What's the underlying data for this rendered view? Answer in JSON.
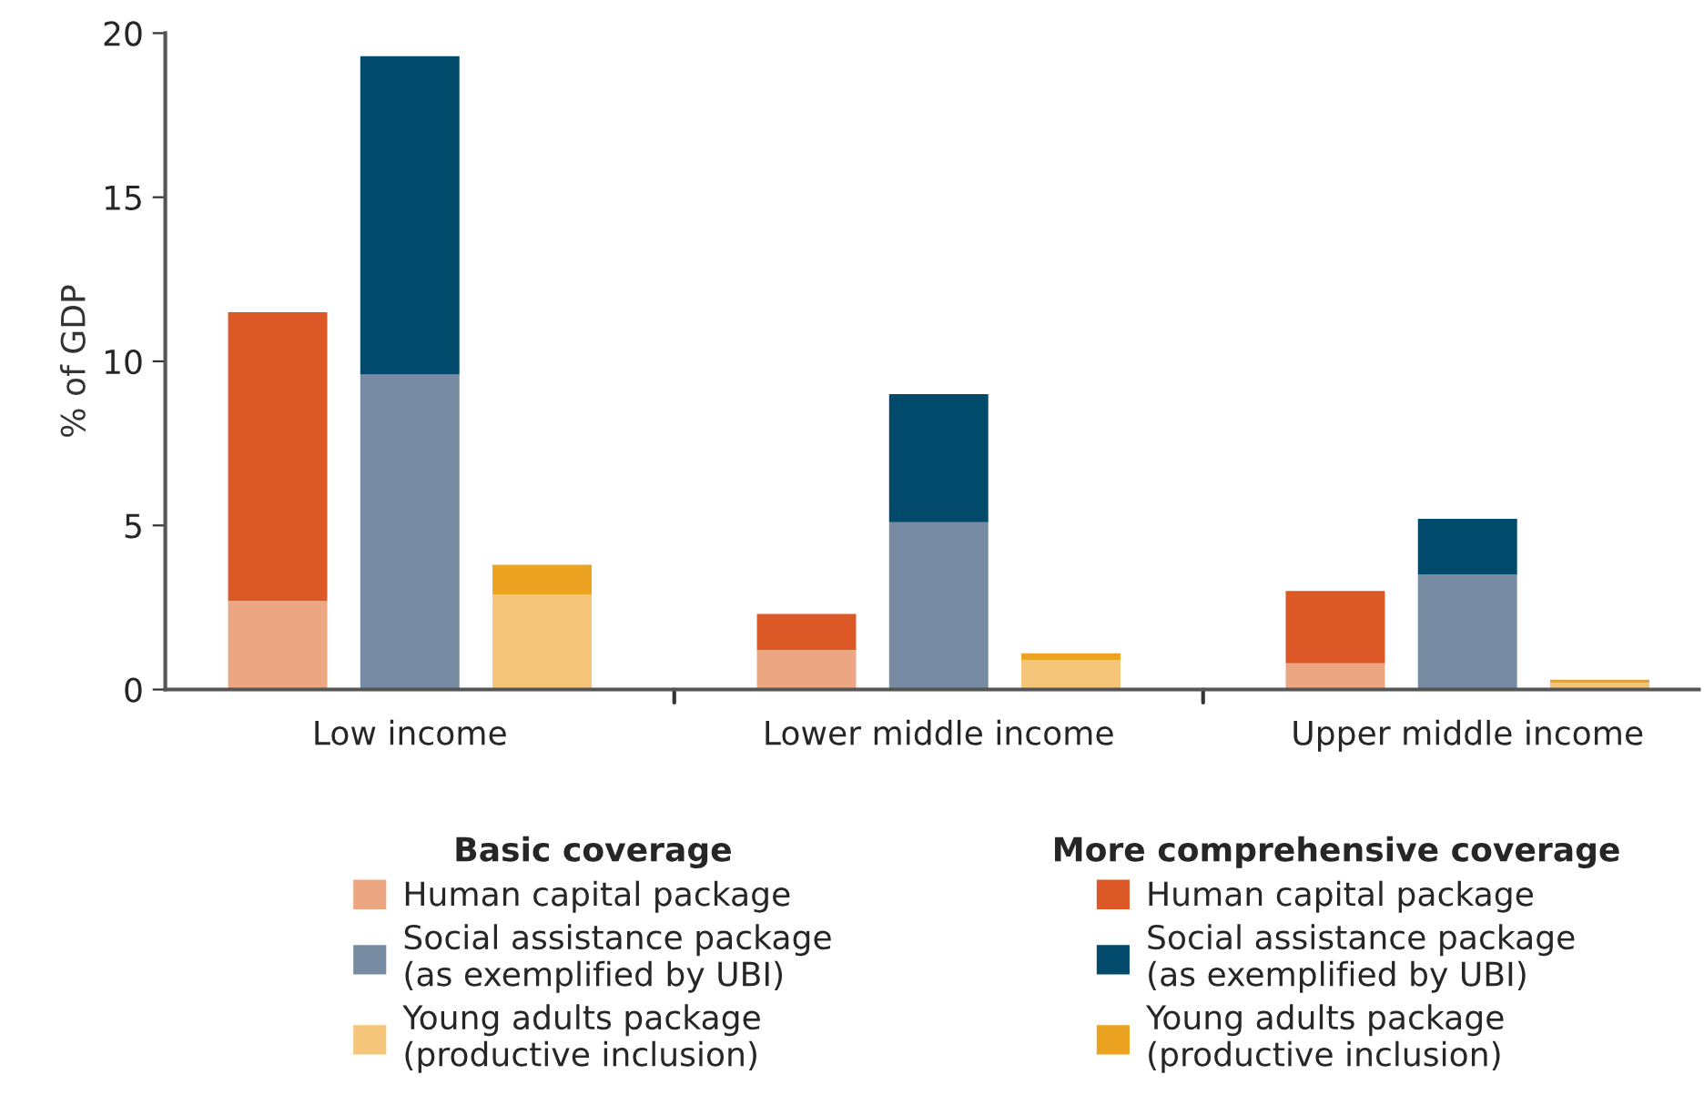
{
  "chart_data": {
    "type": "bar",
    "stacked": true,
    "ylabel": "% of GDP",
    "categories": [
      null,
      "Low income",
      null,
      null,
      null,
      "Lower middle income",
      null,
      null,
      null,
      "Upper middle income",
      null
    ],
    "series": [
      {
        "name": "Human capital package",
        "color": "#eca782",
        "values": [
          2.7,
          null,
          null,
          null,
          1.2,
          null,
          null,
          null,
          0.8,
          null,
          null
        ]
      },
      {
        "name": "Social assistance package\n(as exemplified by UBI)",
        "color": "#778ca3",
        "values": [
          null,
          9.6,
          null,
          null,
          null,
          5.1,
          null,
          null,
          null,
          3.5,
          null
        ]
      },
      {
        "name": "Young adults package\n(productive inclusion)",
        "color": "#f5c57a",
        "values": [
          null,
          null,
          2.9,
          null,
          null,
          null,
          0.9,
          null,
          null,
          null,
          0.2
        ]
      },
      {
        "name": "Human capital package",
        "color": "#dc5827",
        "values": [
          8.8,
          null,
          null,
          null,
          1.1,
          null,
          null,
          null,
          2.2,
          null,
          null
        ]
      },
      {
        "name": "Social assistance package\n(as exemplified by UBI)",
        "color": "#024a6c",
        "values": [
          null,
          9.7,
          null,
          null,
          null,
          3.9,
          null,
          null,
          null,
          1.7,
          null
        ]
      },
      {
        "name": "Young adults package\n(productive inclusion)",
        "color": "#eba321",
        "values": [
          null,
          null,
          0.9,
          null,
          null,
          null,
          0.2,
          null,
          null,
          null,
          0.1
        ]
      }
    ],
    "annotations": [
      "Basic coverage",
      "More comprehensive coverage"
    ],
    "ylim": [
      0,
      20
    ],
    "yticks": [
      0,
      5,
      10,
      15,
      20
    ],
    "grid": false,
    "legend": "bottom"
  }
}
